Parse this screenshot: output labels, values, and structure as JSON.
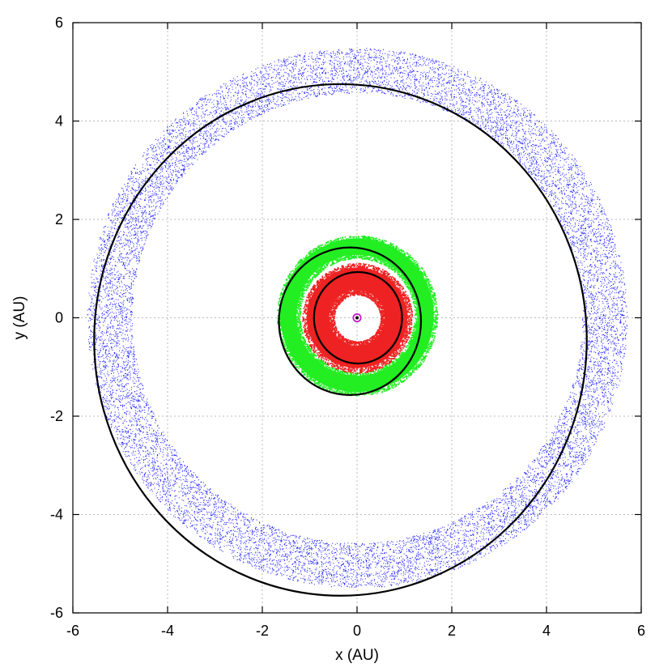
{
  "chart_data": {
    "type": "scatter",
    "title": "",
    "xlabel": "x (AU)",
    "ylabel": "y (AU)",
    "xlim": [
      -6,
      6
    ],
    "ylim": [
      -6,
      6
    ],
    "xticks": [
      "-6",
      "-4",
      "-2",
      "0",
      "2",
      "4",
      "6"
    ],
    "yticks": [
      "-6",
      "-4",
      "-2",
      "0",
      "2",
      "4",
      "6"
    ],
    "grid": true,
    "legend": "none",
    "colors": {
      "outer_belt": "#1a1aff",
      "middle_belt": "#22ee22",
      "inner_belt": "#ee2222",
      "orbit": "#000000",
      "central_body": "#cc22cc",
      "grid": "#bbbbbb"
    },
    "bands": [
      {
        "color": "#1a1aff",
        "center_x": 0.0,
        "center_y": 0.0,
        "r_inner": 4.75,
        "r_outer": 5.7,
        "style": "sparse"
      },
      {
        "color": "#22ee22",
        "center_x": 0.0,
        "center_y": 0.05,
        "r_inner": 1.25,
        "r_outer": 1.65,
        "style": "dense"
      },
      {
        "color": "#ee2222",
        "center_x": 0.0,
        "center_y": 0.0,
        "r_inner": 0.55,
        "r_outer": 1.1,
        "style": "dense"
      }
    ],
    "orbits": [
      {
        "color": "#000000",
        "center_x": -0.35,
        "center_y": -0.45,
        "a": 5.2,
        "b": 5.2
      },
      {
        "color": "#000000",
        "center_x": -0.15,
        "center_y": -0.07,
        "a": 1.5,
        "b": 1.5
      },
      {
        "color": "#000000",
        "center_x": 0.02,
        "center_y": 0.0,
        "a": 0.93,
        "b": 0.93
      }
    ],
    "central_body": {
      "x": 0.0,
      "y": 0.0,
      "r": 0.08
    }
  }
}
